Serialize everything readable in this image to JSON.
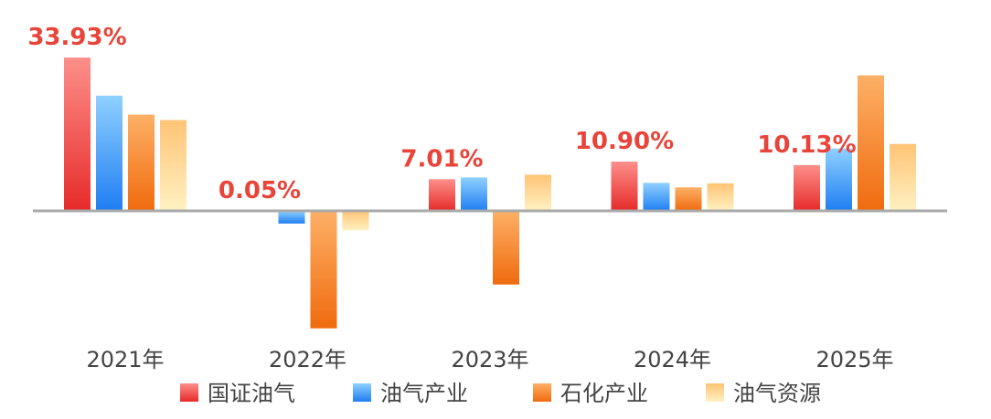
{
  "chart_data": {
    "type": "bar",
    "categories": [
      "2021年",
      "2022年",
      "2023年",
      "2024年",
      "2025年"
    ],
    "series": [
      {
        "name": "国证油气",
        "color": "#e8443a",
        "gradient": [
          "#fd8f8a",
          "#e62b2a"
        ],
        "values": [
          33.93,
          0.05,
          7.01,
          10.9,
          10.13
        ]
      },
      {
        "name": "油气产业",
        "color": "#2d8ff5",
        "gradient": [
          "#8fd0ff",
          "#1f7ef2"
        ],
        "values": [
          25.5,
          -2.8,
          7.4,
          6.2,
          13.8
        ]
      },
      {
        "name": "石化产业",
        "color": "#f5822a",
        "gradient": [
          "#fdb066",
          "#f06b0e"
        ],
        "values": [
          21.3,
          -26.0,
          -16.3,
          5.2,
          30.0
        ]
      },
      {
        "name": "油气资源",
        "color": "#fddf9a",
        "gradient": [
          "#ffc476",
          "#fff1c2"
        ],
        "values": [
          20.1,
          -4.3,
          8.0,
          6.1,
          14.8
        ]
      }
    ],
    "data_labels": [
      "33.93%",
      "0.05%",
      "7.01%",
      "10.90%",
      "10.13%"
    ],
    "ylim": [
      -27.0,
      36.0
    ],
    "grid": false,
    "legend": "bottom",
    "title": "",
    "xlabel": "",
    "ylabel": ""
  }
}
